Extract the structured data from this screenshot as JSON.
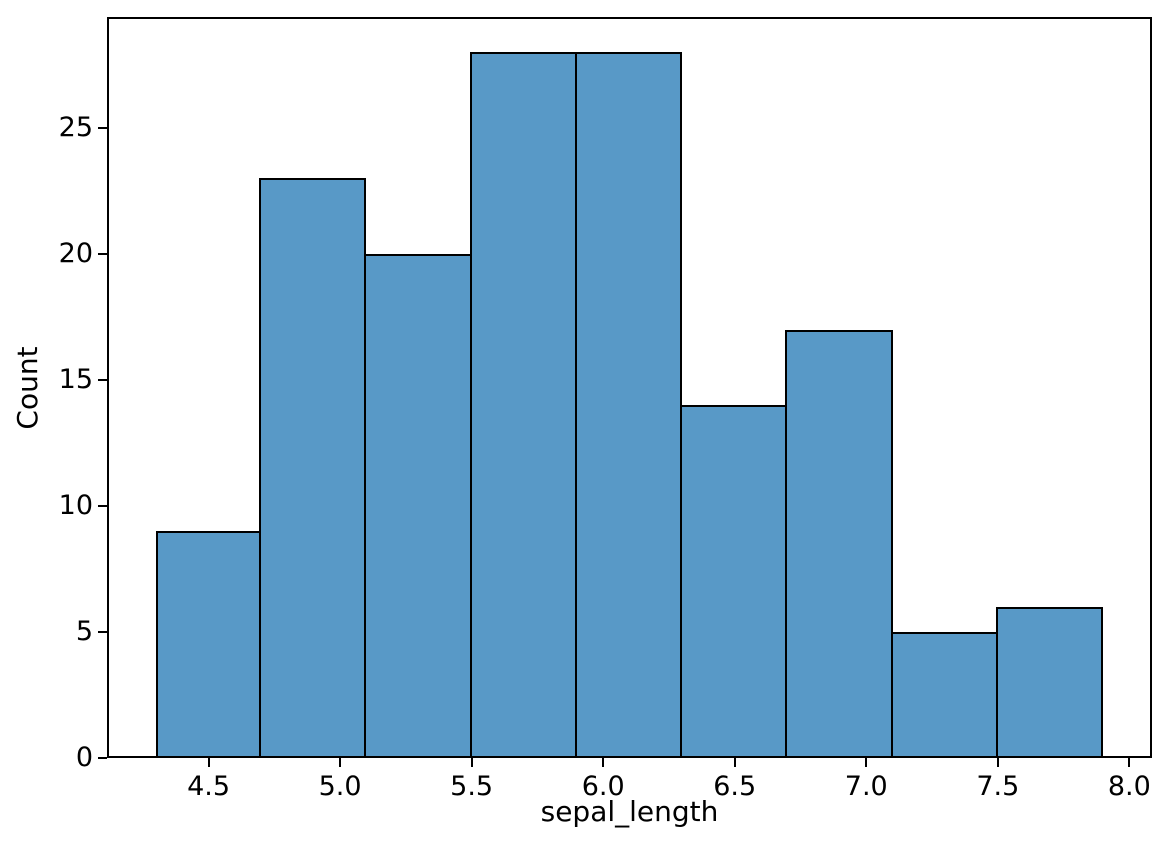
{
  "chart_data": {
    "type": "bar",
    "subtype": "histogram",
    "title": "",
    "xlabel": "sepal_length",
    "ylabel": "Count",
    "bin_edges": [
      4.3,
      4.7,
      5.1,
      5.5,
      5.9,
      6.3,
      6.7,
      7.1,
      7.5,
      7.9
    ],
    "counts": [
      9,
      23,
      20,
      28,
      28,
      14,
      17,
      5,
      6
    ],
    "xlim": [
      4.114,
      8.086
    ],
    "ylim": [
      0,
      29.4
    ],
    "x_tick_values": [
      4.5,
      5.0,
      5.5,
      6.0,
      6.5,
      7.0,
      7.5,
      8.0
    ],
    "x_tick_labels": [
      "4.5",
      "5.0",
      "5.5",
      "6.0",
      "6.5",
      "7.0",
      "7.5",
      "8.0"
    ],
    "y_tick_values": [
      0,
      5,
      10,
      15,
      20,
      25
    ],
    "y_tick_labels": [
      "0",
      "5",
      "10",
      "15",
      "20",
      "25"
    ],
    "grid": false,
    "legend_position": "none",
    "colors": {
      "bar_fill": "#5899C7",
      "bar_edge": "#000000",
      "axis": "#000000",
      "text": "#000000",
      "background": "#FFFFFF"
    }
  }
}
